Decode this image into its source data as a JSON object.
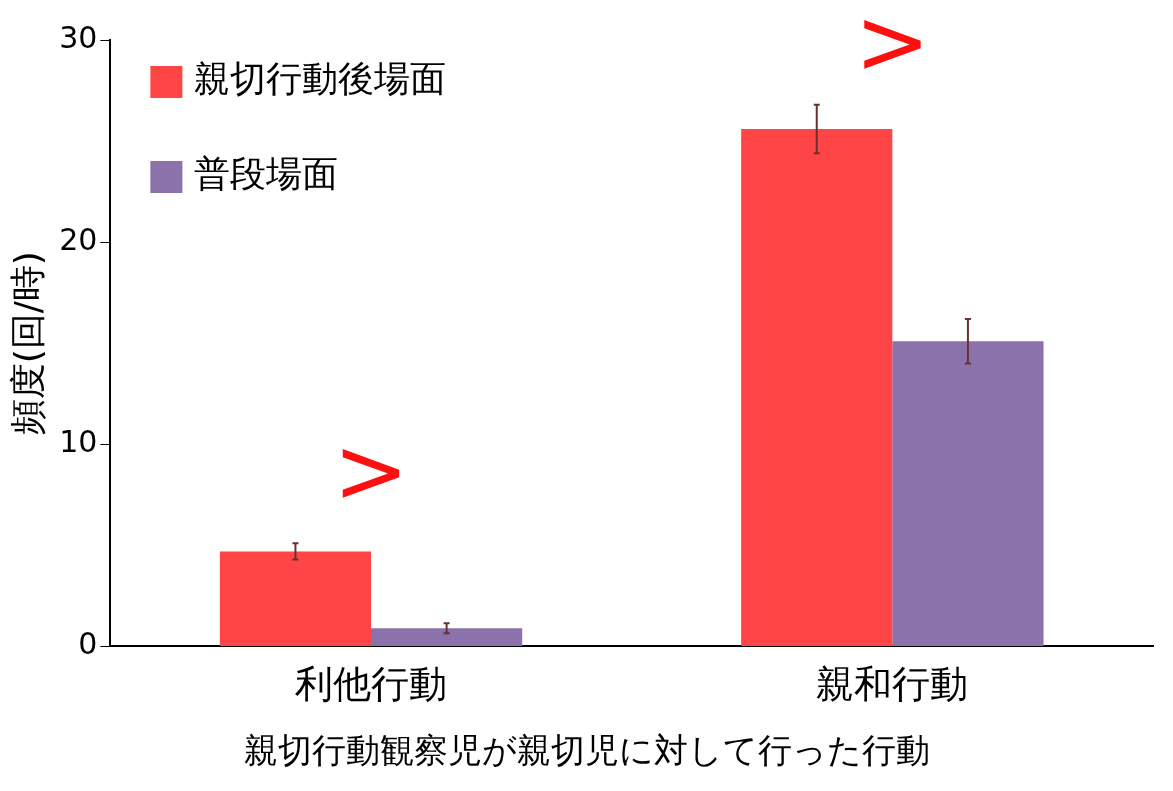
{
  "chart_data": {
    "type": "bar",
    "xlabel": "親切行動観察児が親切児に対して行った行動",
    "ylabel": "頻度(回/時)",
    "categories": [
      "利他行動",
      "親和行動"
    ],
    "series": [
      {
        "name": "親切行動後場面",
        "color": "#ff4545",
        "values": [
          4.7,
          25.6
        ],
        "errors": [
          0.4,
          1.2
        ]
      },
      {
        "name": "普段場面",
        "color": "#8c72aa",
        "values": [
          0.9,
          15.1
        ],
        "errors": [
          0.25,
          1.1
        ]
      }
    ],
    "ylim": [
      0,
      30
    ],
    "yticks": [
      0,
      10,
      20,
      30
    ],
    "grid": false,
    "legend": "top left",
    "annotations": [
      ">",
      ">"
    ]
  }
}
